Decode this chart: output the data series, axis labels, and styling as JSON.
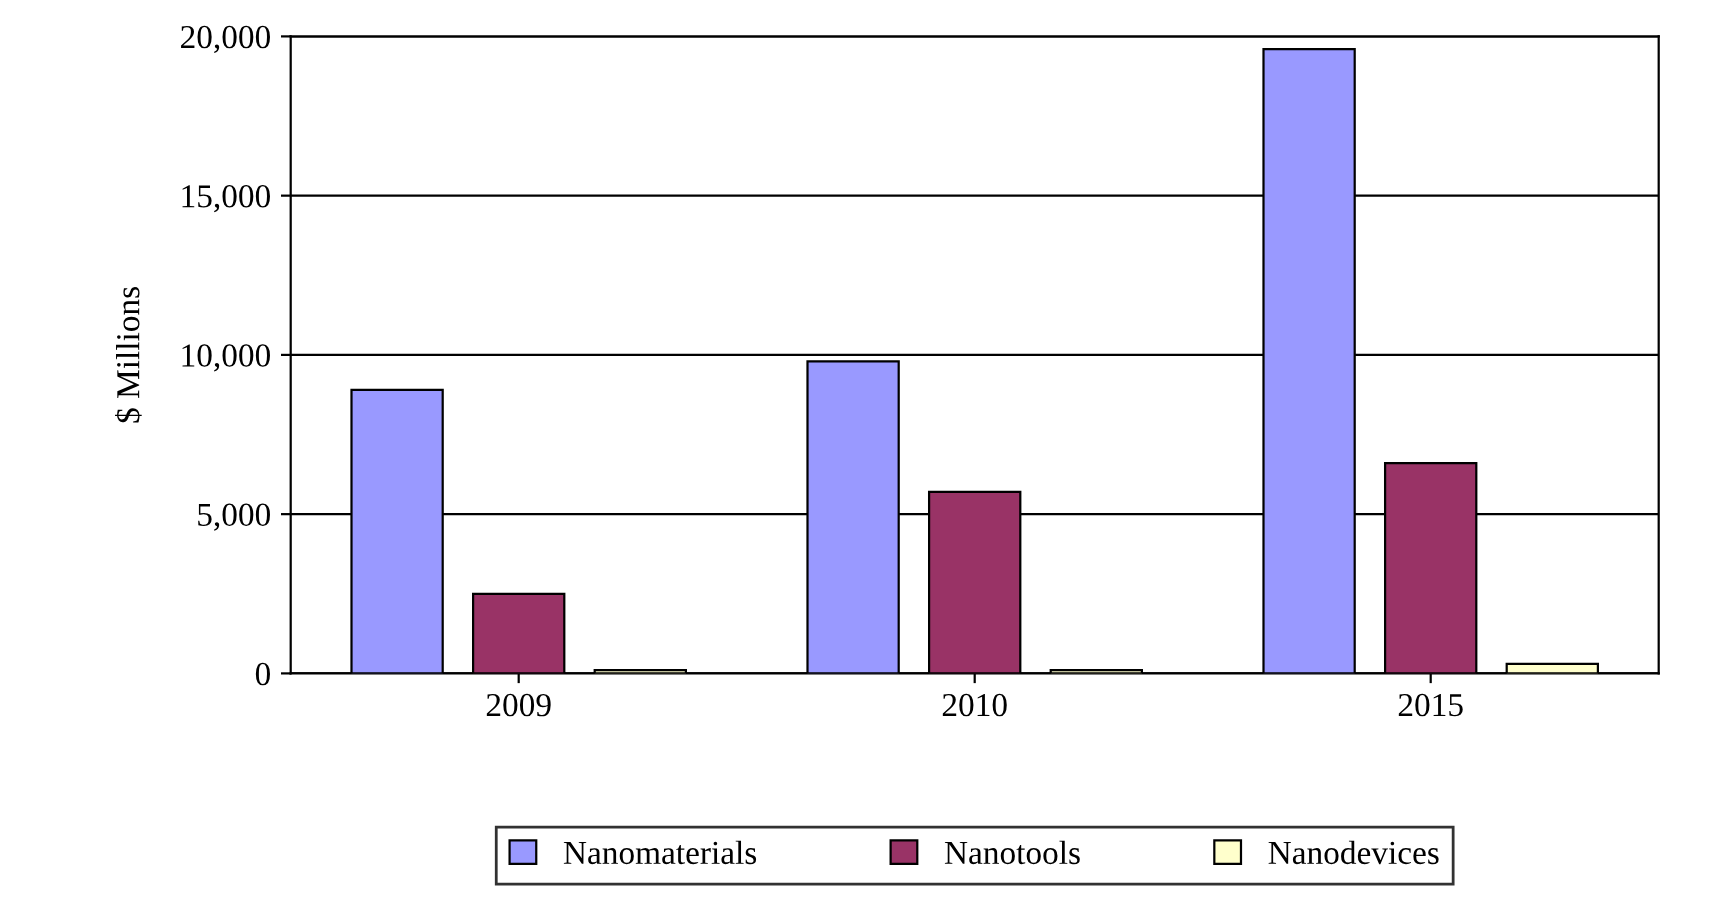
{
  "chart_data": {
    "type": "bar",
    "ylabel": "$ Millions",
    "categories": [
      "2009",
      "2010",
      "2015"
    ],
    "series": [
      {
        "name": "Nanomaterials",
        "color": "#9999ff",
        "values": [
          8900,
          9800,
          19600
        ]
      },
      {
        "name": "Nanotools",
        "color": "#993366",
        "values": [
          2500,
          5700,
          6600
        ]
      },
      {
        "name": "Nanodevices",
        "color": "#ffffcc",
        "values": [
          100,
          100,
          300
        ]
      }
    ],
    "ylim": [
      0,
      20000
    ],
    "yticks": [
      0,
      {
        "value": 5000,
        "label": "5,000"
      },
      {
        "value": 10000,
        "label": "10,000"
      },
      {
        "value": 15000,
        "label": "15,000"
      },
      {
        "value": 20000,
        "label": "20,000"
      }
    ],
    "grid": "y",
    "legend": "bottom"
  }
}
